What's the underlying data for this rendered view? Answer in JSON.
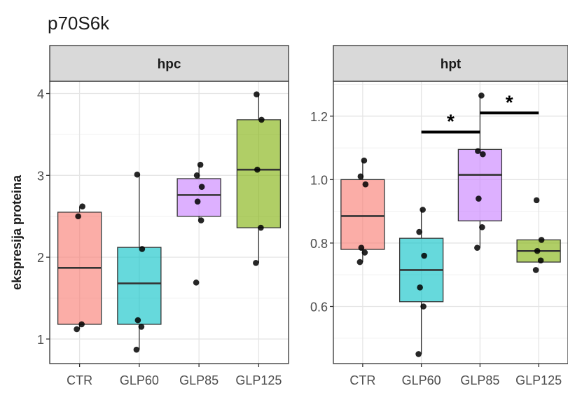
{
  "chart_data": {
    "type": "box",
    "title": "p70S6k",
    "ylabel": "ekspresija proteina",
    "xlabel": "",
    "categories": [
      "CTR",
      "GLP60",
      "GLP85",
      "GLP125"
    ],
    "colors": [
      "#F8766D",
      "#00BFC4",
      "#C77CFF",
      "#7CAE00"
    ],
    "grid": true,
    "legend": "none",
    "panels": [
      {
        "name": "hpc",
        "ylim": [
          0.7,
          4.15
        ],
        "yticks": [
          1,
          2,
          3,
          4
        ],
        "ytick_labels": [
          "1",
          "2",
          "3",
          "4"
        ],
        "boxes": [
          {
            "category": "CTR",
            "q1": 1.18,
            "median": 1.87,
            "q3": 2.55,
            "whisker_low": 1.12,
            "whisker_high": 2.62,
            "points": [
              1.12,
              1.18,
              2.5,
              2.62
            ]
          },
          {
            "category": "GLP60",
            "q1": 1.18,
            "median": 1.68,
            "q3": 2.12,
            "whisker_low": 0.87,
            "whisker_high": 3.01,
            "points": [
              0.87,
              1.15,
              1.23,
              2.1,
              3.01
            ]
          },
          {
            "category": "GLP85",
            "q1": 2.5,
            "median": 2.76,
            "q3": 2.96,
            "whisker_low": 2.45,
            "whisker_high": 3.13,
            "points": [
              1.69,
              2.45,
              2.68,
              2.86,
              3.0,
              3.13
            ]
          },
          {
            "category": "GLP125",
            "q1": 2.36,
            "median": 3.07,
            "q3": 3.68,
            "whisker_low": 1.93,
            "whisker_high": 3.99,
            "points": [
              1.93,
              2.36,
              3.07,
              3.68,
              3.99
            ]
          }
        ],
        "annotations": []
      },
      {
        "name": "hpt",
        "ylim": [
          0.42,
          1.31
        ],
        "yticks": [
          0.6,
          0.8,
          1.0,
          1.2
        ],
        "ytick_labels": [
          "0.6",
          "0.8",
          "1.0",
          "1.2"
        ],
        "boxes": [
          {
            "category": "CTR",
            "q1": 0.78,
            "median": 0.885,
            "q3": 1.0,
            "whisker_low": 0.74,
            "whisker_high": 1.06,
            "points": [
              0.74,
              0.77,
              0.785,
              0.985,
              1.01,
              1.06
            ]
          },
          {
            "category": "GLP60",
            "q1": 0.615,
            "median": 0.715,
            "q3": 0.815,
            "whisker_low": 0.45,
            "whisker_high": 0.905,
            "points": [
              0.45,
              0.6,
              0.66,
              0.76,
              0.835,
              0.905
            ]
          },
          {
            "category": "GLP85",
            "q1": 0.87,
            "median": 1.015,
            "q3": 1.095,
            "whisker_low": 0.785,
            "whisker_high": 1.265,
            "points": [
              0.785,
              0.85,
              0.94,
              1.08,
              1.09,
              1.265
            ]
          },
          {
            "category": "GLP125",
            "q1": 0.74,
            "median": 0.775,
            "q3": 0.81,
            "whisker_low": 0.74,
            "whisker_high": 0.81,
            "points": [
              0.715,
              0.745,
              0.775,
              0.81,
              0.935
            ]
          }
        ],
        "annotations": [
          {
            "from": "GLP60",
            "to": "GLP85",
            "y": 1.15,
            "label": "*"
          },
          {
            "from": "GLP85",
            "to": "GLP125",
            "y": 1.21,
            "label": "*"
          }
        ]
      }
    ]
  }
}
